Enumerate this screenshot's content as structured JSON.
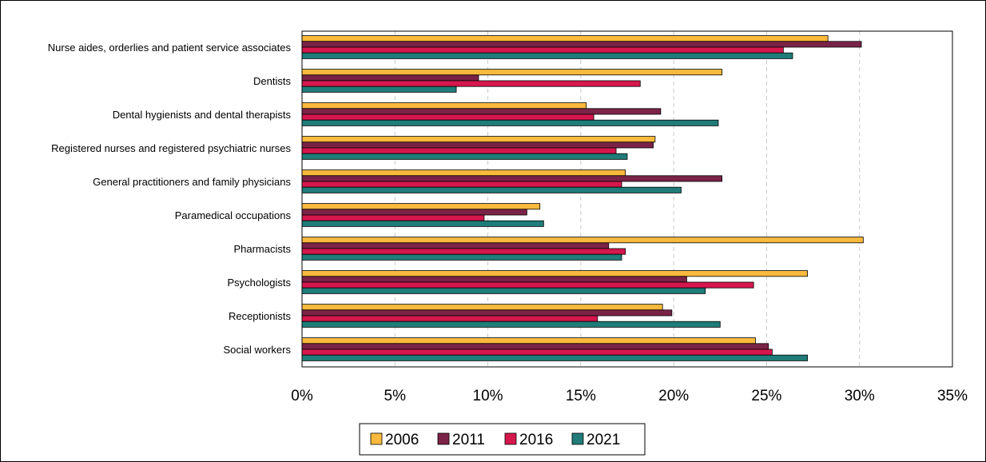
{
  "chart_data": {
    "type": "bar",
    "orientation": "horizontal",
    "title": "",
    "xlabel": "",
    "ylabel": "",
    "xlim": [
      0,
      35
    ],
    "x_ticks": [
      "0%",
      "5%",
      "10%",
      "15%",
      "20%",
      "25%",
      "30%",
      "35%"
    ],
    "grid": "vertical dashed",
    "legend_position": "bottom",
    "categories": [
      "Nurse aides, orderlies and patient service associates",
      "Dentists",
      "Dental hygienists and dental therapists",
      "Registered nurses and registered psychiatric nurses",
      "General practitioners and family physicians",
      "Paramedical occupations",
      "Pharmacists",
      "Psychologists",
      "Receptionists",
      "Social workers"
    ],
    "series": [
      {
        "name": "2006",
        "color": "#FBB93D",
        "values": [
          28.3,
          22.6,
          15.3,
          19.0,
          17.4,
          12.8,
          30.2,
          27.2,
          19.4,
          24.4
        ]
      },
      {
        "name": "2011",
        "color": "#7B2347",
        "values": [
          30.1,
          9.5,
          19.3,
          18.9,
          22.6,
          12.1,
          16.5,
          20.7,
          19.9,
          25.1
        ]
      },
      {
        "name": "2016",
        "color": "#D6174E",
        "values": [
          25.9,
          18.2,
          15.7,
          16.9,
          17.2,
          9.8,
          17.4,
          24.3,
          15.9,
          25.3
        ]
      },
      {
        "name": "2021",
        "color": "#1F7C79",
        "values": [
          26.4,
          8.3,
          22.4,
          17.5,
          20.4,
          13.0,
          17.2,
          21.7,
          22.5,
          27.2
        ]
      }
    ]
  }
}
